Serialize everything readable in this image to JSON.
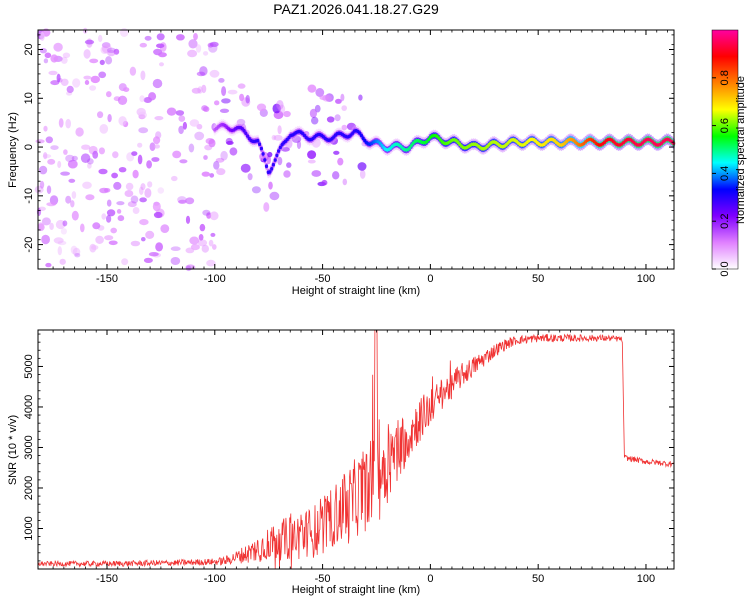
{
  "title": "PAZ1.2026.041.18.27.G29",
  "chart_data": [
    {
      "type": "heatmap",
      "panel": "spectrogram",
      "xlabel": "Height of straight line (km)",
      "ylabel": "Frequency (Hz)",
      "xlim": [
        -182,
        113
      ],
      "ylim": [
        -25,
        24
      ],
      "xticks": [
        -150,
        -100,
        -50,
        0,
        50,
        100
      ],
      "yticks": [
        -20,
        -10,
        0,
        10,
        20
      ],
      "xtick_labels": [
        "-150",
        "-100",
        "-50",
        "0",
        "50",
        "100"
      ],
      "ytick_labels": [
        "-20",
        "-10",
        "0",
        "10",
        "20"
      ],
      "ridge": {
        "description_points_x": [
          -100,
          -90,
          -80,
          -75,
          -65,
          -55,
          -45,
          -35,
          -28,
          -20,
          -10,
          0,
          10,
          20,
          40,
          60,
          80,
          100,
          113
        ],
        "description_points_freq": [
          4,
          4,
          1,
          -5,
          3,
          2,
          2,
          3,
          1,
          0,
          0,
          2,
          1,
          0,
          1,
          1,
          1,
          1,
          1
        ],
        "amplitude": [
          0.15,
          0.25,
          0.3,
          0.3,
          0.3,
          0.3,
          0.3,
          0.3,
          0.35,
          0.45,
          0.5,
          0.55,
          0.6,
          0.62,
          0.65,
          0.7,
          0.9,
          0.95,
          0.95
        ]
      },
      "colorbar": {
        "label": "Normalized spectral amplitude",
        "range": [
          0.0,
          1.0
        ],
        "ticks": [
          0.0,
          0.2,
          0.4,
          0.6,
          0.8
        ],
        "tick_labels": [
          "0.0",
          "0.2",
          "0.4",
          "0.6",
          "0.8"
        ],
        "colors": [
          "#ffffff",
          "#e080ff",
          "#8000ff",
          "#0000ff",
          "#00ffff",
          "#00ff00",
          "#ffff00",
          "#ff8000",
          "#ff0000",
          "#ff00a0"
        ]
      }
    },
    {
      "type": "line",
      "panel": "snr",
      "xlabel": "Height of straight line (km)",
      "ylabel": "SNR (10 * v/v)",
      "xlim": [
        -182,
        113
      ],
      "ylim": [
        0,
        5900
      ],
      "xticks": [
        -150,
        -100,
        -50,
        0,
        50,
        100
      ],
      "yticks": [
        1000,
        2000,
        3000,
        4000,
        5000
      ],
      "xtick_labels": [
        "-150",
        "-100",
        "-50",
        "0",
        "50",
        "100"
      ],
      "ytick_labels": [
        "1000",
        "2000",
        "3000",
        "4000",
        "5000"
      ],
      "color": "#f03232",
      "envelope": {
        "x": [
          -182,
          -150,
          -120,
          -100,
          -95,
          -90,
          -85,
          -80,
          -75,
          -70,
          -65,
          -60,
          -55,
          -50,
          -45,
          -40,
          -35,
          -30,
          -25,
          -20,
          -15,
          -10,
          -5,
          0,
          5,
          10,
          15,
          20,
          25,
          30,
          35,
          40,
          50,
          60,
          70,
          80,
          88,
          89,
          90,
          95,
          100,
          105,
          110,
          113
        ],
        "y": [
          130,
          130,
          150,
          180,
          200,
          300,
          380,
          500,
          650,
          700,
          780,
          820,
          900,
          1050,
          1300,
          1500,
          1750,
          2000,
          2300,
          2600,
          3000,
          3300,
          3700,
          4000,
          4300,
          4550,
          4800,
          5000,
          5200,
          5400,
          5550,
          5650,
          5700,
          5700,
          5700,
          5700,
          5680,
          5650,
          2750,
          2700,
          2650,
          2630,
          2600,
          2600
        ]
      },
      "noise": {
        "x": [
          -182,
          -100,
          -90,
          -80,
          -70,
          -60,
          -50,
          -40,
          -30,
          -20,
          -10,
          0,
          10,
          20,
          30,
          40,
          90,
          113
        ],
        "amp": [
          60,
          80,
          150,
          350,
          500,
          600,
          700,
          850,
          1100,
          1000,
          650,
          450,
          350,
          250,
          170,
          110,
          70,
          70
        ]
      }
    }
  ]
}
